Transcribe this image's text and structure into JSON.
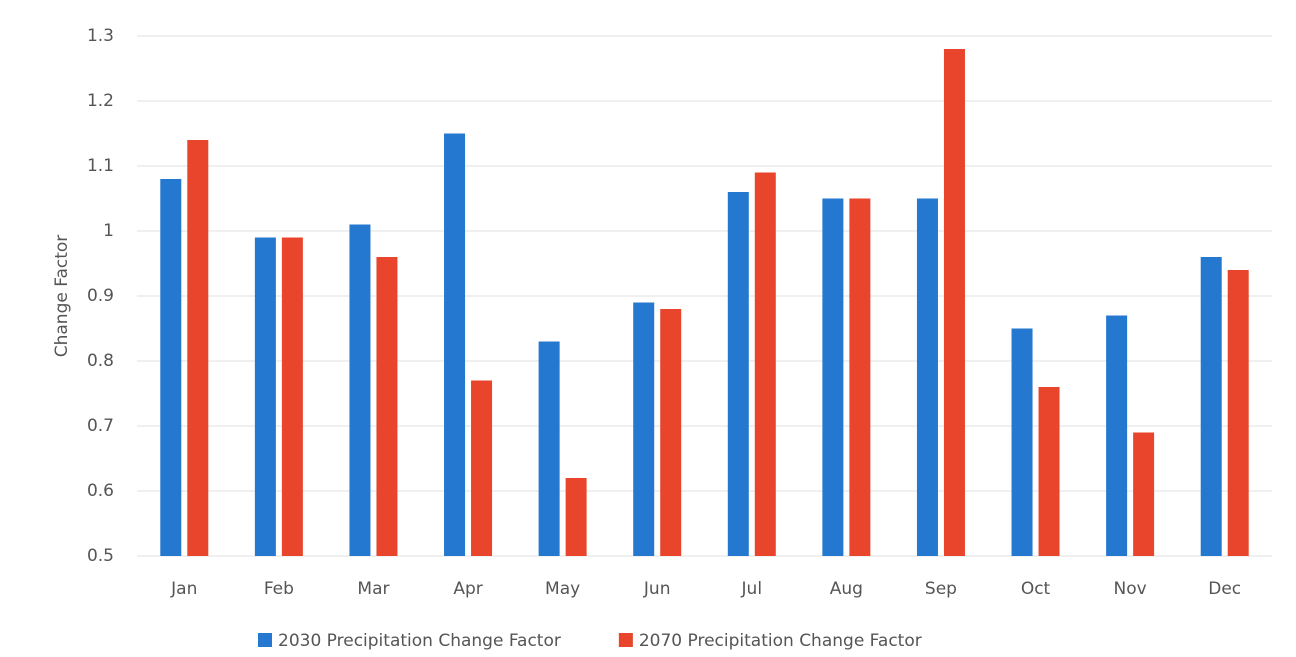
{
  "chart_data": {
    "type": "bar",
    "ylabel": "Change Factor",
    "categories": [
      "Jan",
      "Feb",
      "Mar",
      "Apr",
      "May",
      "Jun",
      "Jul",
      "Aug",
      "Sep",
      "Oct",
      "Nov",
      "Dec"
    ],
    "series": [
      {
        "name": "2030 Precipitation Change Factor",
        "color": "#2478cf",
        "values": [
          1.08,
          0.99,
          1.01,
          1.15,
          0.83,
          0.89,
          1.06,
          1.05,
          1.05,
          0.85,
          0.87,
          0.96
        ]
      },
      {
        "name": "2070 Precipitation Change Factor",
        "color": "#e8452c",
        "values": [
          1.14,
          0.99,
          0.96,
          0.77,
          0.62,
          0.88,
          1.09,
          1.05,
          1.28,
          0.76,
          0.69,
          0.94
        ]
      }
    ],
    "ylim": [
      0.5,
      1.3
    ],
    "yticks": [
      0.5,
      0.6,
      0.7,
      0.8,
      0.9,
      1,
      1.1,
      1.2,
      1.3
    ],
    "grid": true,
    "legend": "bottom"
  }
}
